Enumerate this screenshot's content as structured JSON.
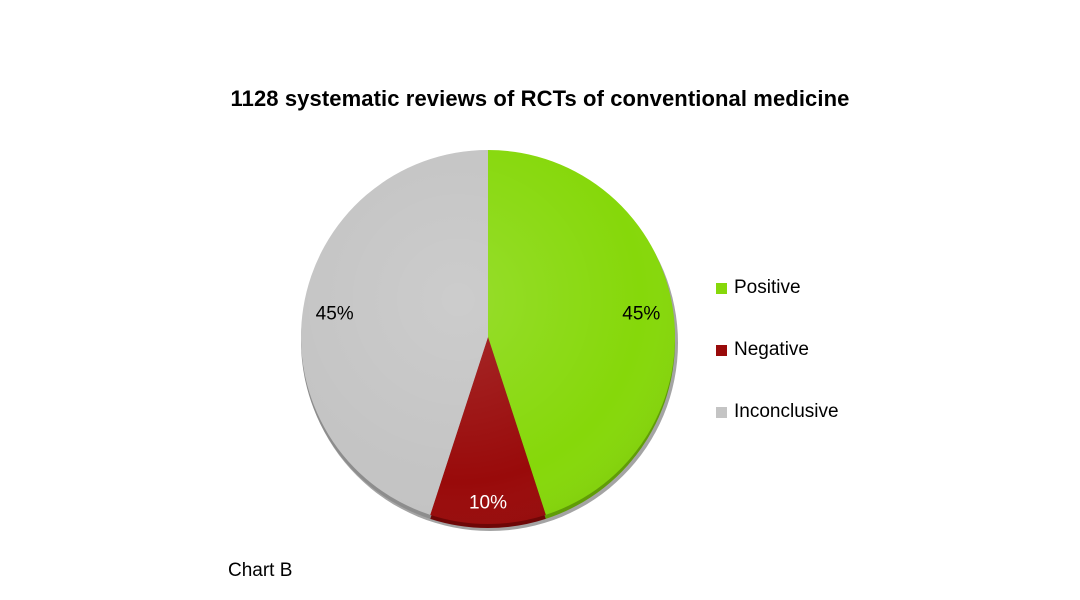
{
  "chart_data": {
    "type": "pie",
    "title": "1128 systematic reviews of RCTs of conventional medicine",
    "slices": [
      {
        "name": "Positive",
        "value": 45,
        "label": "45%",
        "color": "#86d80a"
      },
      {
        "name": "Negative",
        "value": 10,
        "label": "10%",
        "color": "#990a0a"
      },
      {
        "name": "Inconclusive",
        "value": 45,
        "label": "45%",
        "color": "#c4c4c4"
      }
    ],
    "label_colors": {
      "Positive": "#000000",
      "Negative": "#ffffff",
      "Inconclusive": "#000000"
    },
    "legend_position": "right",
    "start_angle": "12 o'clock",
    "direction": "clockwise"
  },
  "caption": "Chart B"
}
